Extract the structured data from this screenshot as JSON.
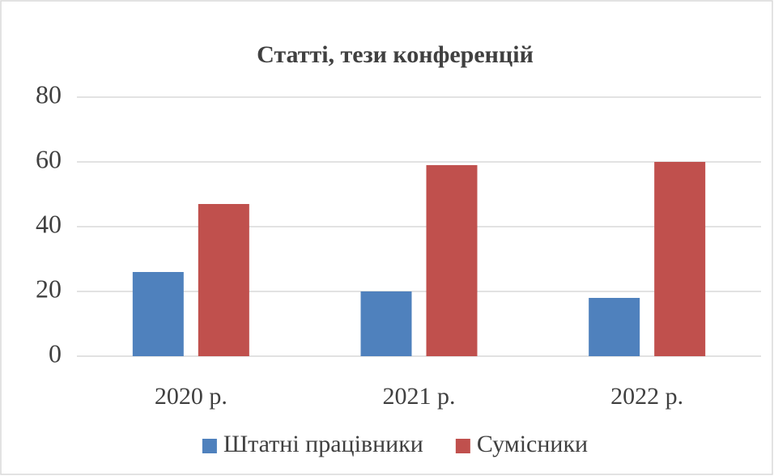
{
  "chart_data": {
    "type": "bar",
    "title": "Статті, тези конференцій",
    "categories": [
      "2020 р.",
      "2021 р.",
      "2022 р."
    ],
    "series": [
      {
        "name": "Штатні працівники",
        "color": "#4f81bd",
        "values": [
          26,
          20,
          18
        ]
      },
      {
        "name": "Сумісники",
        "color": "#c0504d",
        "values": [
          47,
          59,
          60
        ]
      }
    ],
    "ylim": [
      0,
      80
    ],
    "yticks": [
      0,
      20,
      40,
      60,
      80
    ],
    "grid": true,
    "legend": "bottom"
  }
}
